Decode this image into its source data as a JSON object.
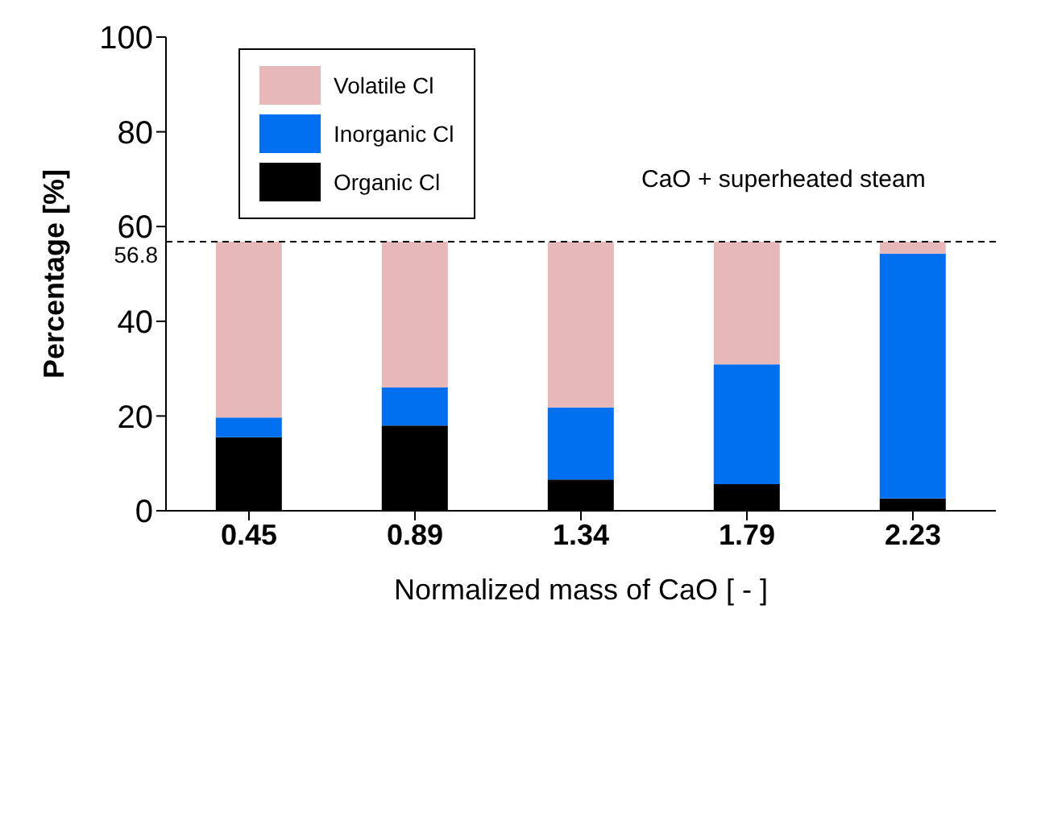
{
  "chart_data": {
    "type": "bar",
    "stacked": true,
    "xlabel": "Normalized mass of CaO [ - ]",
    "ylabel": "Percentage [%]",
    "categories": [
      "0.45",
      "0.89",
      "1.34",
      "1.79",
      "2.23"
    ],
    "series": [
      {
        "name": "Organic Cl",
        "color": "#000000",
        "values": [
          15.5,
          18.0,
          6.6,
          5.6,
          2.6
        ]
      },
      {
        "name": "Inorganic Cl",
        "color": "#0070f0",
        "values": [
          4.2,
          8.0,
          15.2,
          25.3,
          51.7
        ]
      },
      {
        "name": "Volatile Cl",
        "color": "#e6b9b8",
        "values": [
          37.1,
          30.8,
          35.0,
          25.9,
          2.5
        ]
      }
    ],
    "ylim": [
      0,
      100
    ],
    "yticks": [
      0,
      20,
      40,
      60,
      80,
      100
    ],
    "ref_lines": [
      {
        "axis": "y",
        "value": 56.8,
        "label": "56.8",
        "line_style": "dashed",
        "color": "#000000"
      }
    ],
    "annotations": [
      "CaO + superheated steam"
    ],
    "legend": "top left",
    "grid": false
  }
}
